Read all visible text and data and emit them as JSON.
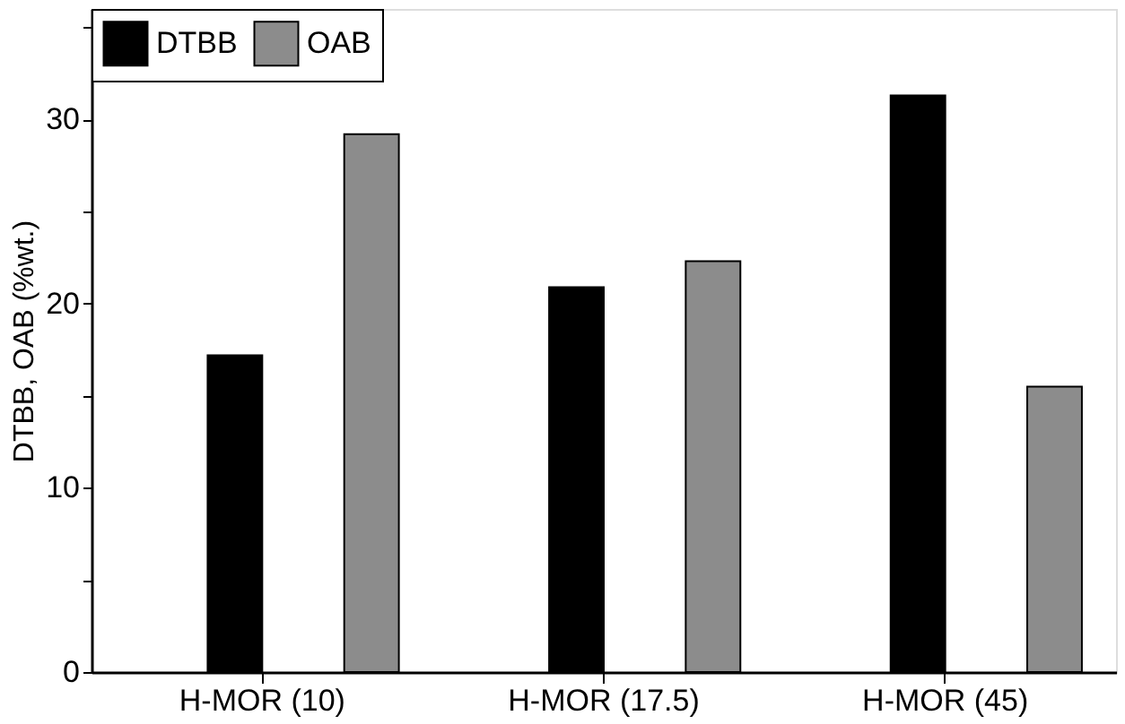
{
  "chart_data": {
    "type": "bar",
    "categories": [
      "H-MOR (10)",
      "H-MOR (17.5)",
      "H-MOR (45)"
    ],
    "ylabel": "DTBB, OAB (%wt.)",
    "series": [
      {
        "name": "DTBB",
        "color": "#000000",
        "values": [
          17.2,
          20.9,
          31.3
        ]
      },
      {
        "name": "OAB",
        "color": "#8c8c8c",
        "values": [
          29.2,
          22.3,
          15.5
        ]
      }
    ],
    "ylim": [
      0,
      36
    ],
    "yticks": [
      0,
      {
        "value": 5,
        "label": null
      },
      10,
      {
        "value": 15,
        "label": null
      },
      20,
      {
        "value": 25,
        "label": null
      },
      30,
      {
        "value": 35,
        "label": null
      }
    ],
    "grid": false,
    "legend": "top left"
  }
}
